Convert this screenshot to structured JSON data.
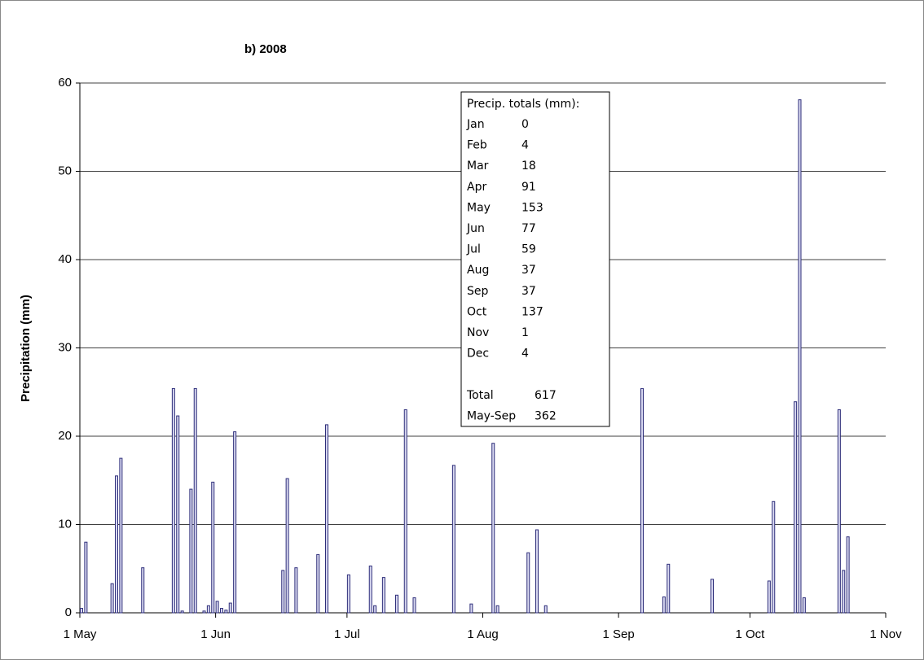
{
  "chart_data": {
    "type": "bar",
    "title": "b)  2008",
    "y_label": "Precipitation (mm)",
    "x": [
      122,
      123,
      129,
      130,
      131,
      136,
      143,
      144,
      145,
      147,
      148,
      150,
      151,
      152,
      153,
      154,
      155,
      156,
      157,
      168,
      169,
      171,
      176,
      178,
      183,
      188,
      189,
      191,
      194,
      196,
      198,
      207,
      211,
      216,
      217,
      224,
      226,
      228,
      250,
      255,
      256,
      266,
      279,
      280,
      285,
      286,
      287,
      295,
      296,
      297
    ],
    "values": [
      0.5,
      8,
      3.3,
      15.5,
      17.5,
      5.1,
      25.4,
      22.3,
      0.2,
      14,
      25.4,
      0.2,
      0.8,
      14.8,
      1.3,
      0.5,
      0.3,
      1.1,
      20.5,
      4.8,
      15.2,
      5.1,
      6.6,
      21.3,
      4.3,
      5.3,
      0.8,
      4,
      2,
      23,
      1.7,
      16.7,
      1,
      19.2,
      0.8,
      6.8,
      9.4,
      0.8,
      25.4,
      1.8,
      5.5,
      3.8,
      3.6,
      12.6,
      23.9,
      58.1,
      1.7,
      23,
      4.8,
      8.6
    ],
    "color": "#2e2e7a",
    "xlim": [
      122,
      306
    ],
    "xticks": [
      {
        "value": 122,
        "label": "1 May"
      },
      {
        "value": 153,
        "label": "1 Jun"
      },
      {
        "value": 183,
        "label": "1 Jul"
      },
      {
        "value": 214,
        "label": "1 Aug"
      },
      {
        "value": 245,
        "label": "1 Sep"
      },
      {
        "value": 275,
        "label": "1 Oct"
      },
      {
        "value": 306,
        "label": "1 Nov"
      }
    ],
    "ylim": [
      0,
      60
    ],
    "yticks": [
      0,
      10,
      20,
      30,
      40,
      50,
      60
    ],
    "grid": true,
    "inset": {
      "title": "Precip. totals (mm):",
      "rows": [
        [
          "Jan",
          0
        ],
        [
          "Feb",
          4
        ],
        [
          "Mar",
          18
        ],
        [
          "Apr",
          91
        ],
        [
          "May",
          153
        ],
        [
          "Jun",
          77
        ],
        [
          "Jul",
          59
        ],
        [
          "Aug",
          37
        ],
        [
          "Sep",
          37
        ],
        [
          "Oct",
          137
        ],
        [
          "Nov",
          1
        ],
        [
          "Dec",
          4
        ]
      ],
      "totals": [
        [
          "Total",
          617
        ],
        [
          "May-Sep",
          362
        ]
      ]
    }
  }
}
